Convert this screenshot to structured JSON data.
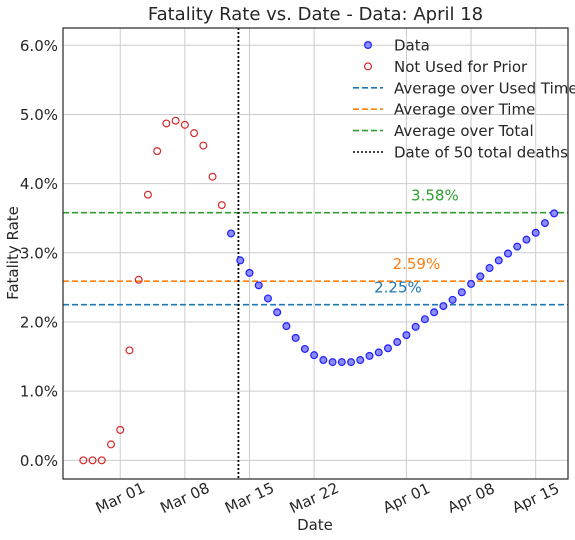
{
  "chart_data": {
    "type": "scatter",
    "title": "Fatality Rate vs. Date - Data: April 18",
    "xlabel": "Date",
    "ylabel": "Fatality Rate",
    "x_ticks": [
      {
        "day": 0,
        "label": "Mar 01"
      },
      {
        "day": 7,
        "label": "Mar 08"
      },
      {
        "day": 14,
        "label": "Mar 15"
      },
      {
        "day": 21,
        "label": "Mar 22"
      },
      {
        "day": 31,
        "label": "Apr 01"
      },
      {
        "day": 38,
        "label": "Apr 08"
      },
      {
        "day": 45,
        "label": "Apr 15"
      }
    ],
    "y_ticks": [
      {
        "value": 0.0,
        "label": "0.0%"
      },
      {
        "value": 1.0,
        "label": "1.0%"
      },
      {
        "value": 2.0,
        "label": "2.0%"
      },
      {
        "value": 3.0,
        "label": "3.0%"
      },
      {
        "value": 4.0,
        "label": "4.0%"
      },
      {
        "value": 5.0,
        "label": "5.0%"
      },
      {
        "value": 6.0,
        "label": "6.0%"
      }
    ],
    "xlim": [
      -6.2,
      48.5
    ],
    "ylim": [
      -0.27,
      6.25
    ],
    "grid": true,
    "legend_position": "top-right",
    "legend": [
      {
        "key": "data",
        "label": "Data"
      },
      {
        "key": "prior",
        "label": "Not Used for Prior"
      },
      {
        "key": "avg_used",
        "label": "Average over Used Time"
      },
      {
        "key": "avg_time",
        "label": "Average over Time"
      },
      {
        "key": "avg_total",
        "label": "Average over Total"
      },
      {
        "key": "deaths50",
        "label": "Date of 50 total deaths"
      }
    ],
    "series": [
      {
        "name": "Not Used for Prior",
        "marker": "open-circle",
        "color": "#d62728",
        "x": [
          -4,
          -3,
          -2,
          -1,
          0,
          1,
          2,
          3,
          4,
          5,
          6,
          7,
          8,
          9,
          10,
          11
        ],
        "y": [
          0.0,
          0.0,
          0.0,
          0.23,
          0.44,
          1.59,
          2.61,
          3.84,
          4.47,
          4.87,
          4.91,
          4.85,
          4.73,
          4.55,
          4.1,
          3.69
        ]
      },
      {
        "name": "Data",
        "marker": "filled-circle",
        "color": "#1f1fff",
        "x": [
          12,
          13,
          14,
          15,
          16,
          17,
          18,
          19,
          20,
          21,
          22,
          23,
          24,
          25,
          26,
          27,
          28,
          29,
          30,
          31,
          32,
          33,
          34,
          35,
          36,
          37,
          38,
          39,
          40,
          41,
          42,
          43,
          44,
          45,
          46,
          47
        ],
        "y": [
          3.28,
          2.89,
          2.71,
          2.53,
          2.34,
          2.14,
          1.94,
          1.77,
          1.61,
          1.52,
          1.45,
          1.42,
          1.42,
          1.42,
          1.45,
          1.51,
          1.56,
          1.62,
          1.71,
          1.81,
          1.93,
          2.04,
          2.14,
          2.23,
          2.32,
          2.43,
          2.55,
          2.66,
          2.78,
          2.89,
          2.99,
          3.09,
          3.19,
          3.29,
          3.43,
          3.57
        ]
      }
    ],
    "hlines": [
      {
        "key": "avg_used",
        "value": 2.25,
        "label": "2.25%",
        "label_x": 27.5,
        "color": "#1f77b4"
      },
      {
        "key": "avg_time",
        "value": 2.59,
        "label": "2.59%",
        "label_x": 29.5,
        "color": "#ff7f0e"
      },
      {
        "key": "avg_total",
        "value": 3.58,
        "label": "3.58%",
        "label_x": 31.5,
        "color": "#2ca02c"
      }
    ],
    "vline": {
      "key": "deaths50",
      "x": 12.8,
      "color": "#000000"
    }
  }
}
